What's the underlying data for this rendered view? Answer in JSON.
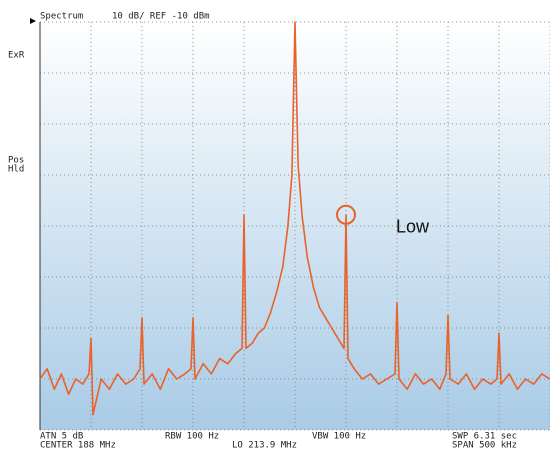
{
  "chart_data": {
    "type": "line",
    "header": {
      "mode": "Spectrum",
      "scale": "10 dB/ REF -10 dBm"
    },
    "side_labels": [
      "ExR",
      "Pos",
      "Hld"
    ],
    "annotation": {
      "text": "Low",
      "x": 188.05,
      "y": -47.8
    },
    "footer": [
      "ATN  5 dB",
      "CENTER  188 MHz",
      "RBW  100 Hz",
      "LO  213.9 MHz",
      "VBW  100 Hz",
      "SWP  6.31 sec",
      "SPAN  500 kHz"
    ],
    "x": [
      187.75,
      187.757,
      187.764,
      187.771,
      187.778,
      187.785,
      187.792,
      187.798,
      187.8,
      187.802,
      187.81,
      187.818,
      187.826,
      187.834,
      187.842,
      187.848,
      187.85,
      187.852,
      187.86,
      187.868,
      187.876,
      187.884,
      187.892,
      187.898,
      187.9,
      187.902,
      187.91,
      187.918,
      187.926,
      187.934,
      187.942,
      187.948,
      187.95,
      187.952,
      187.958,
      187.964,
      187.97,
      187.976,
      187.982,
      187.988,
      187.993,
      187.997,
      188.0,
      188.003,
      188.007,
      188.012,
      188.018,
      188.024,
      188.03,
      188.036,
      188.042,
      188.048,
      188.05,
      188.052,
      188.058,
      188.066,
      188.074,
      188.082,
      188.09,
      188.098,
      188.1,
      188.102,
      188.11,
      188.118,
      188.126,
      188.134,
      188.142,
      188.148,
      188.15,
      188.152,
      188.16,
      188.168,
      188.176,
      188.184,
      188.192,
      188.198,
      188.2,
      188.202,
      188.21,
      188.218,
      188.226,
      188.234,
      188.242,
      188.25
    ],
    "series": [
      {
        "name": "Trace",
        "color": "#e8632a",
        "values": [
          -80,
          -78,
          -82,
          -79,
          -83,
          -80,
          -81,
          -79,
          -72,
          -87,
          -80,
          -82,
          -79,
          -81,
          -80,
          -78,
          -68,
          -81,
          -79,
          -82,
          -78,
          -80,
          -79,
          -78,
          -68,
          -80,
          -77,
          -79,
          -76,
          -77,
          -75,
          -74,
          -47.8,
          -74,
          -73,
          -71,
          -70,
          -67,
          -63,
          -58,
          -50,
          -40,
          -10,
          -38,
          -48,
          -56,
          -62,
          -66,
          -68,
          -70,
          -72,
          -74,
          -47.8,
          -76,
          -78,
          -80,
          -79,
          -81,
          -80,
          -79,
          -65,
          -80,
          -82,
          -79,
          -81,
          -80,
          -82,
          -79,
          -67.5,
          -80,
          -81,
          -79,
          -82,
          -80,
          -81,
          -80,
          -71,
          -81,
          -79,
          -82,
          -80,
          -81,
          -79,
          -80
        ]
      }
    ],
    "xlim": [
      187.75,
      188.25
    ],
    "xticks": [
      187.75,
      187.8,
      187.85,
      187.9,
      187.95,
      188.0,
      188.05,
      188.1,
      188.15,
      188.2,
      188.25
    ],
    "ylim": [
      -90,
      -10
    ],
    "yticks": [
      -90,
      -80,
      -70,
      -60,
      -50,
      -40,
      -30,
      -20,
      -10
    ],
    "grid": true
  }
}
